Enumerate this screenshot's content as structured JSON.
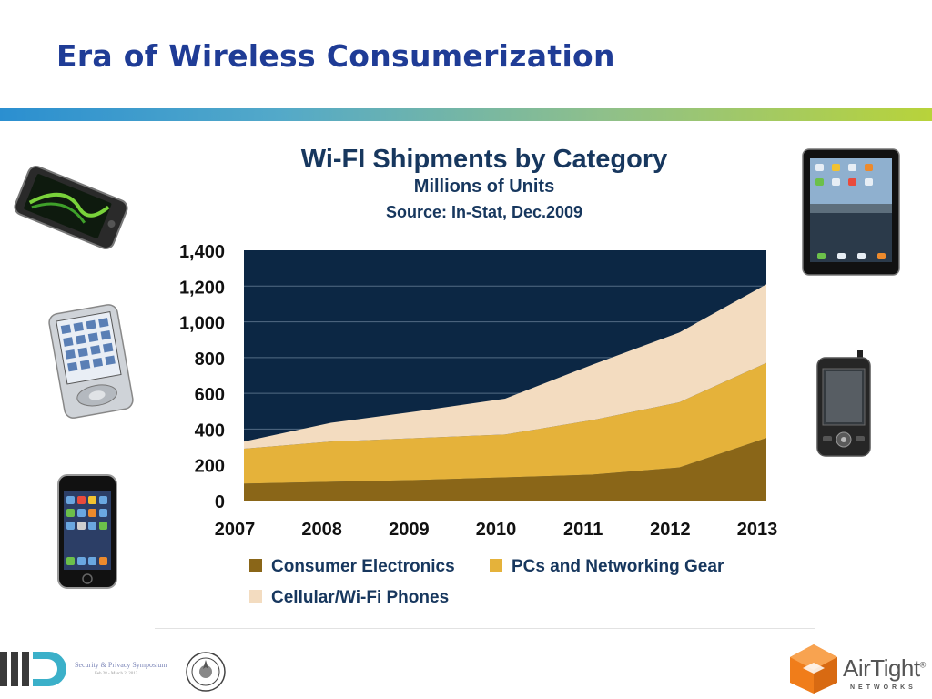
{
  "slide": {
    "title": "Era of Wireless Consumerization"
  },
  "footer": {
    "symposium_line1": "Security & Privacy Symposium",
    "symposium_line2": "Feb 28 - March 2, 2013",
    "company_name": "AirTight",
    "company_mark": "®",
    "company_sub": "NETWORKS"
  },
  "devices": [
    {
      "name": "smartphone-image",
      "kind": "phone-landscape"
    },
    {
      "name": "pda-image",
      "kind": "pda"
    },
    {
      "name": "iphone-image",
      "kind": "iphone"
    },
    {
      "name": "ipad-image",
      "kind": "tablet"
    },
    {
      "name": "pocket-pc-image",
      "kind": "pocket-pc"
    }
  ],
  "colors": {
    "title": "#1f3c96",
    "plot_bg": "#0c2744",
    "consumer": "#8a6618",
    "pcs": "#e5b23a",
    "phones": "#f3dcc0"
  },
  "chart_data": {
    "type": "area",
    "stacked": true,
    "title": "Wi-FI Shipments by Category",
    "subtitle": "Millions of Units",
    "source": "Source: In-Stat, Dec.2009",
    "x": [
      "2007",
      "2008",
      "2009",
      "2010",
      "2011",
      "2012",
      "2013"
    ],
    "yticks": [
      "0",
      "200",
      "400",
      "600",
      "800",
      "1,000",
      "1,200",
      "1,400"
    ],
    "ylim": [
      0,
      1400
    ],
    "grid": true,
    "legend_position": "bottom",
    "series": [
      {
        "name": "Consumer Electronics",
        "color": "#8a6618",
        "values": [
          95,
          105,
          115,
          130,
          145,
          185,
          350
        ]
      },
      {
        "name": "PCs and Networking Gear",
        "color": "#e5b23a",
        "values": [
          195,
          225,
          235,
          240,
          305,
          365,
          420
        ]
      },
      {
        "name": "Cellular/Wi-Fi Phones",
        "color": "#f3dcc0",
        "values": [
          40,
          105,
          150,
          200,
          310,
          390,
          440
        ]
      }
    ]
  }
}
